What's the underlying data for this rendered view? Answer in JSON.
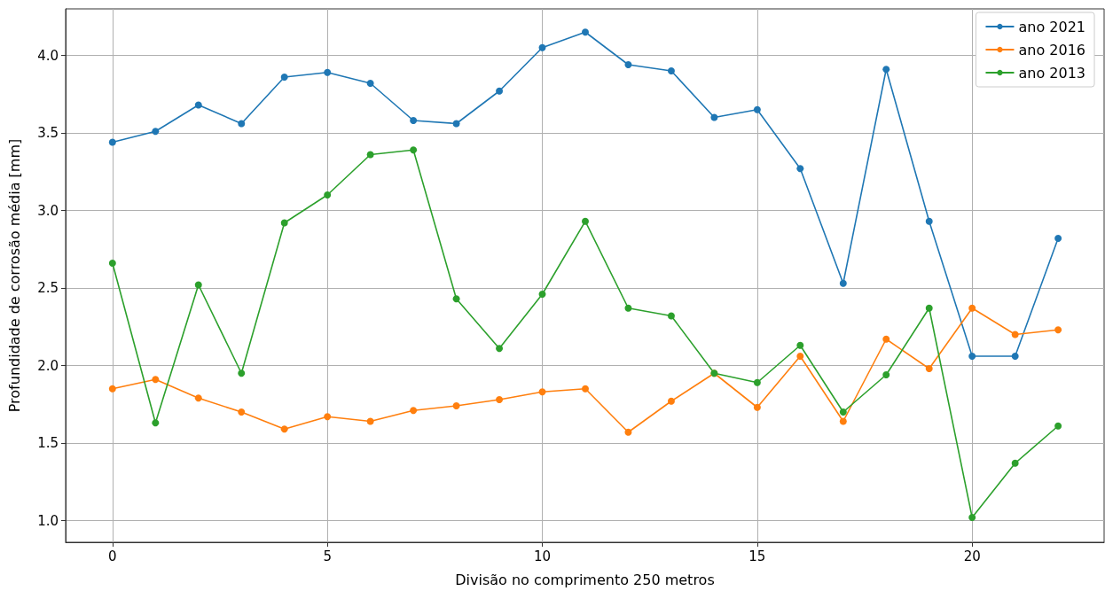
{
  "chart_data": {
    "type": "line",
    "xlabel": "Divisão no comprimento 250 metros",
    "ylabel": "Profundidade de corrosão média [mm]",
    "x": [
      0,
      1,
      2,
      3,
      4,
      5,
      6,
      7,
      8,
      9,
      10,
      11,
      12,
      13,
      14,
      15,
      16,
      17,
      18,
      19,
      20,
      21,
      22
    ],
    "series": [
      {
        "name": "ano 2021",
        "color": "#1f77b4",
        "values": [
          3.44,
          3.51,
          3.68,
          3.56,
          3.86,
          3.89,
          3.82,
          3.58,
          3.56,
          3.77,
          4.05,
          4.15,
          3.94,
          3.9,
          3.6,
          3.65,
          3.27,
          2.53,
          3.91,
          2.93,
          2.06,
          2.06,
          2.82
        ]
      },
      {
        "name": "ano 2016",
        "color": "#ff7f0e",
        "values": [
          1.85,
          1.91,
          1.79,
          1.7,
          1.59,
          1.67,
          1.64,
          1.71,
          1.74,
          1.78,
          1.83,
          1.85,
          1.57,
          1.77,
          1.95,
          1.73,
          2.06,
          1.64,
          2.17,
          1.98,
          2.37,
          2.2,
          2.23
        ]
      },
      {
        "name": "ano 2013",
        "color": "#2ca02c",
        "values": [
          2.66,
          1.63,
          2.52,
          1.95,
          2.92,
          3.1,
          3.36,
          3.39,
          2.43,
          2.11,
          2.46,
          2.93,
          2.37,
          2.32,
          1.95,
          1.89,
          2.13,
          1.7,
          1.94,
          2.37,
          1.02,
          1.37,
          1.61
        ]
      }
    ],
    "xlim": [
      -1.09,
      23.07
    ],
    "xticks": [
      0,
      5,
      10,
      15,
      20
    ],
    "ylim": [
      0.86,
      4.3
    ],
    "yticks": [
      {
        "value": 1,
        "label": "1.0"
      },
      1.5,
      {
        "value": 2,
        "label": "2.0"
      },
      2.5,
      {
        "value": 3,
        "label": "3.0"
      },
      3.5,
      {
        "value": 4,
        "label": "4.0"
      }
    ],
    "grid": true,
    "legend": "top right",
    "marker": "circle",
    "line_style": "solid"
  }
}
